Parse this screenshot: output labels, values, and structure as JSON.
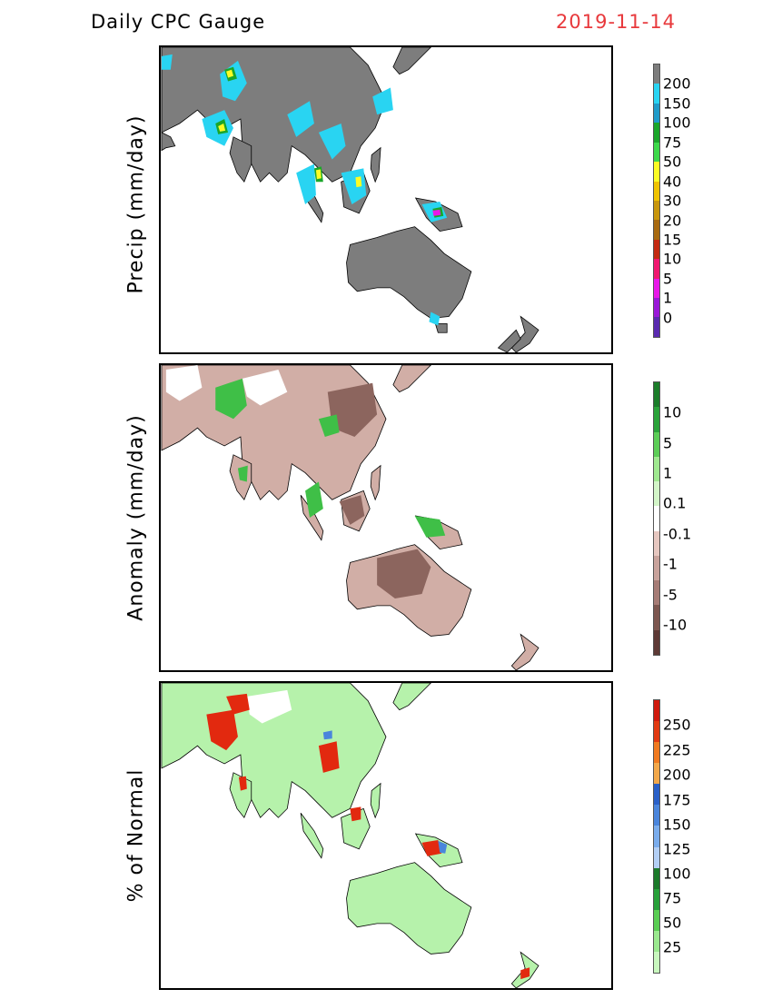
{
  "header": {
    "title": "Daily CPC Gauge",
    "date": "2019-11-14"
  },
  "panels": [
    {
      "ylabel": "Precip (mm/day)",
      "legend": {
        "colors": [
          "#7d7d7d",
          "#29d4f2",
          "#1f9bc9",
          "#1aa62a",
          "#3dd94a",
          "#fbfc24",
          "#f0c400",
          "#c8960c",
          "#a86a10",
          "#c42a12",
          "#f01870",
          "#e818e8",
          "#9a18d8",
          "#5a2ab0"
        ],
        "labels": [
          "0",
          "1",
          "5",
          "10",
          "15",
          "20",
          "30",
          "40",
          "50",
          "75",
          "100",
          "150",
          "200"
        ]
      }
    },
    {
      "ylabel": "Anomaly (mm/day)",
      "legend": {
        "colors": [
          "#5e3a36",
          "#7d5750",
          "#a67c76",
          "#c9a39c",
          "#e6c7c0",
          "#ffffff",
          "#d3f5c8",
          "#9fe890",
          "#5ccd57",
          "#2aa33a",
          "#1b7d2a"
        ],
        "labels": [
          "-10",
          "-5",
          "-1",
          "-0.1",
          "0.1",
          "1",
          "5",
          "10"
        ]
      }
    },
    {
      "ylabel": "% of Normal",
      "legend": {
        "colors": [
          "#c8f7be",
          "#9ae88f",
          "#5acd53",
          "#27a03a",
          "#1b7a2a",
          "#b3cff5",
          "#7aacec",
          "#4a85dc",
          "#2a60c8",
          "#f3a84a",
          "#f07a20",
          "#e23a12",
          "#d01a0e"
        ],
        "labels": [
          "25",
          "50",
          "75",
          "100",
          "125",
          "150",
          "175",
          "200",
          "225",
          "250"
        ]
      }
    }
  ]
}
